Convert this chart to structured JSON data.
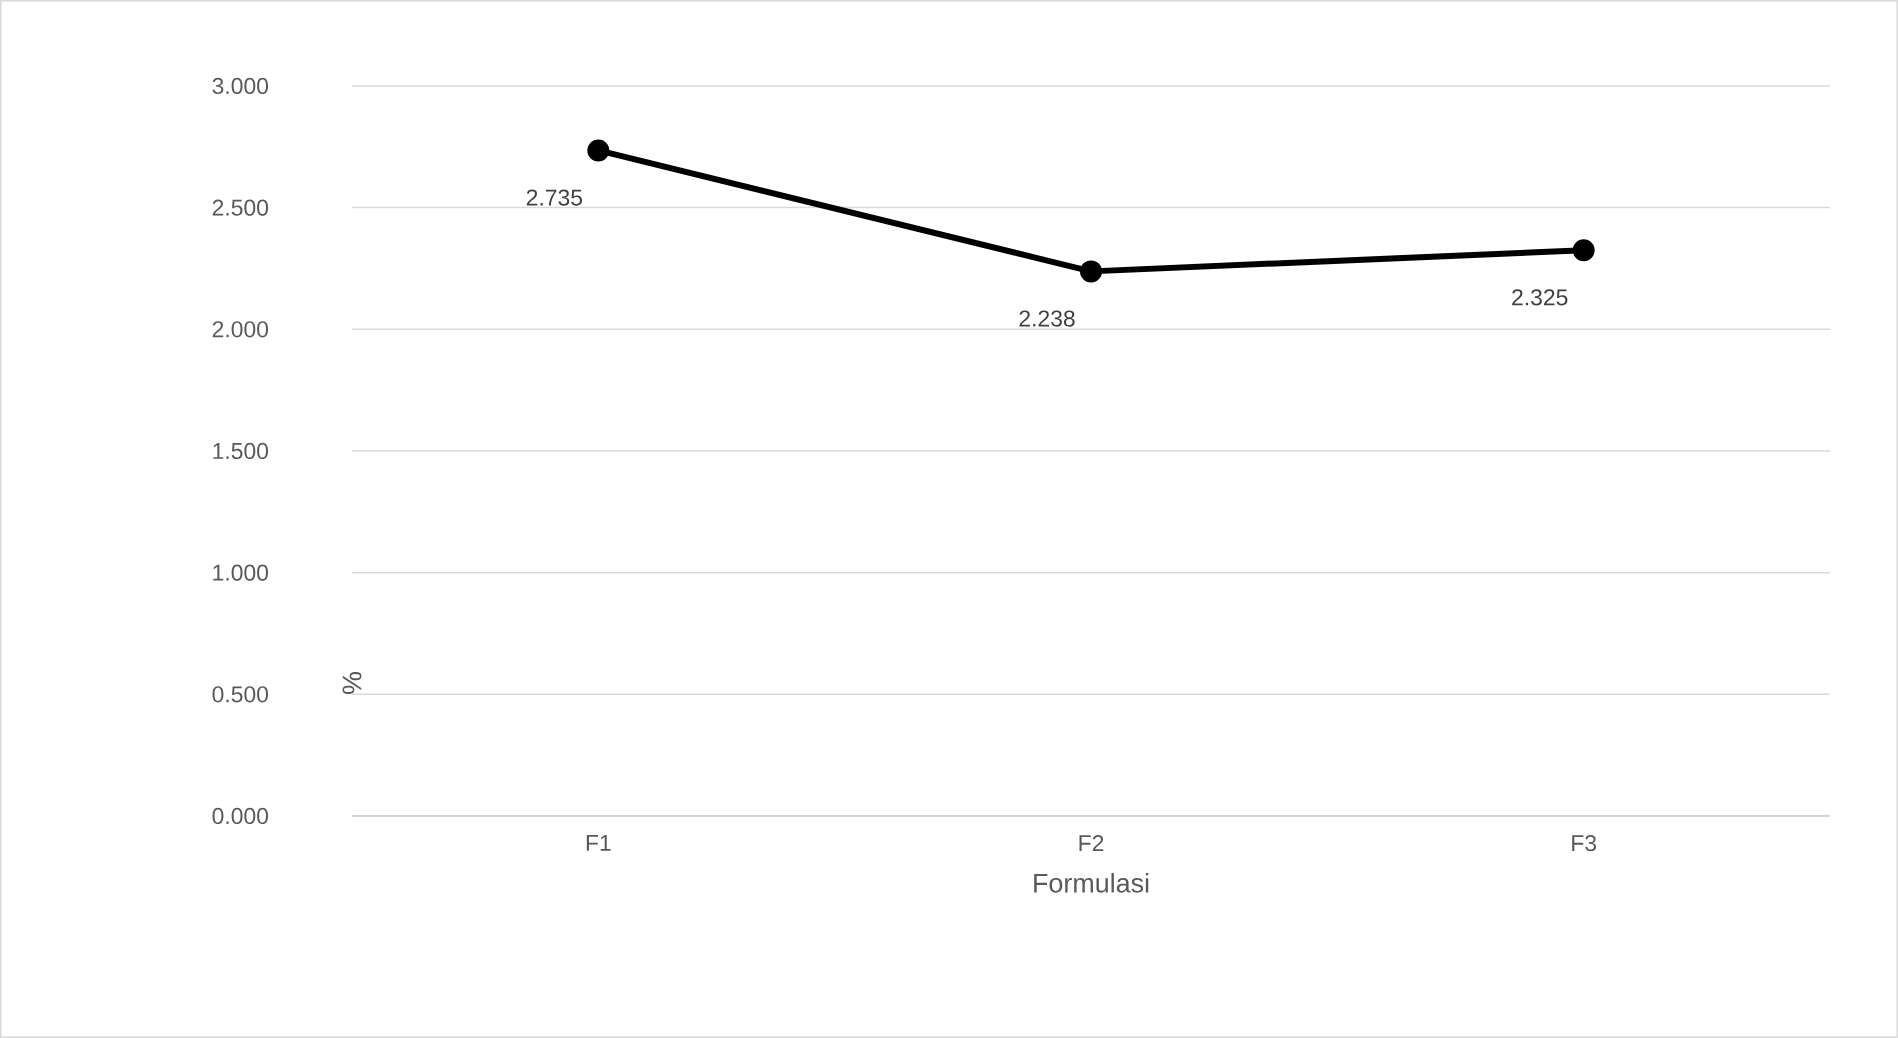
{
  "chart_data": {
    "type": "line",
    "xlabel": "Formulasi",
    "ylabel": "%",
    "categories": [
      "F1",
      "F2",
      "F3"
    ],
    "values": [
      2.735,
      2.238,
      2.325
    ],
    "value_labels": [
      "2.735",
      "2.238",
      "2.325"
    ],
    "color": "#000000",
    "marker": "circle",
    "line_style": "solid",
    "ylim": [
      0,
      3
    ],
    "yticks": [
      {
        "value": 0,
        "label": "0.000"
      },
      {
        "value": 0.5,
        "label": "0.500"
      },
      {
        "value": 1,
        "label": "1.000"
      },
      {
        "value": 1.5,
        "label": "1.500"
      },
      {
        "value": 2,
        "label": "2.000"
      },
      {
        "value": 2.5,
        "label": "2.500"
      },
      {
        "value": 3,
        "label": "3.000"
      }
    ],
    "grid": "y"
  }
}
